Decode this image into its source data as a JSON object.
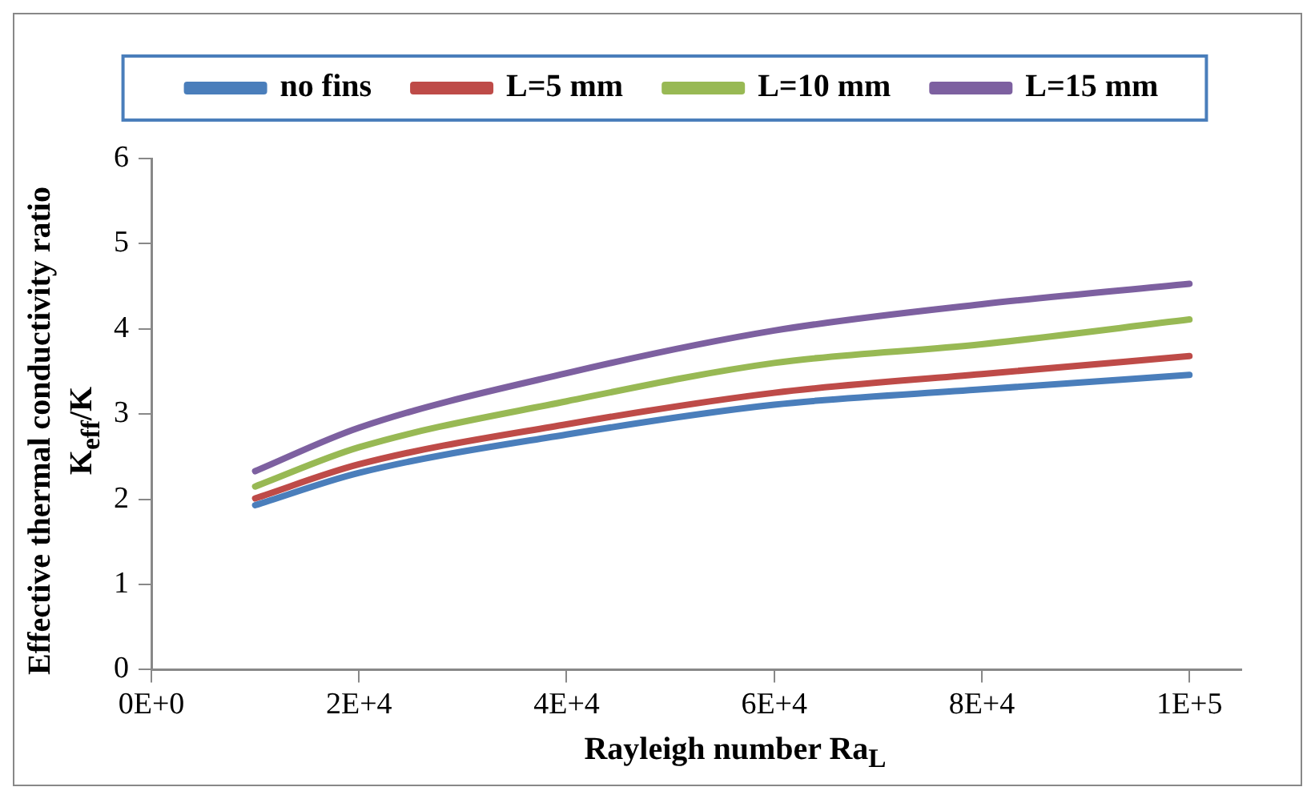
{
  "chart_data": {
    "type": "line",
    "xlabel": "Rayleigh number Ra$_{L}$",
    "ylabel": "Effective thermal conductivity ratio\nK$_{eff}$/K",
    "x": [
      10000,
      20000,
      40000,
      60000,
      80000,
      100000
    ],
    "series": [
      {
        "name": "no fins",
        "color": "#4a7ebb",
        "values": [
          1.93,
          2.31,
          2.76,
          3.11,
          3.29,
          3.46
        ]
      },
      {
        "name": "L=5 mm",
        "color": "#be4b48",
        "values": [
          2.01,
          2.41,
          2.88,
          3.25,
          3.47,
          3.68
        ]
      },
      {
        "name": "L=10 mm",
        "color": "#98b954",
        "values": [
          2.15,
          2.61,
          3.15,
          3.6,
          3.82,
          4.11
        ]
      },
      {
        "name": "L=15 mm",
        "color": "#7d60a0",
        "values": [
          2.33,
          2.84,
          3.48,
          3.98,
          4.29,
          4.53
        ]
      }
    ],
    "xlim": [
      0,
      105000
    ],
    "xticks": [
      {
        "value": 0,
        "label": "0E+0"
      },
      {
        "value": 20000,
        "label": "2E+4"
      },
      {
        "value": 40000,
        "label": "4E+4"
      },
      {
        "value": 60000,
        "label": "6E+4"
      },
      {
        "value": 80000,
        "label": "8E+4"
      },
      {
        "value": 100000,
        "label": "1E+5"
      }
    ],
    "ylim": [
      0,
      6
    ],
    "yticks": [
      0,
      1,
      2,
      3,
      4,
      5,
      6
    ],
    "grid": false,
    "legend": "top",
    "marker": "none",
    "line_style": "solid"
  }
}
